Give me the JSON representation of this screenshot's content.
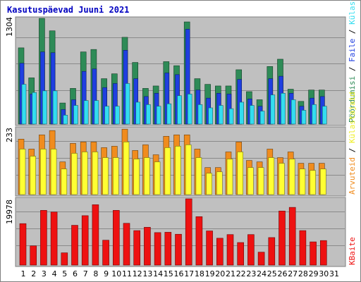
{
  "chart_data": {
    "type": "bar",
    "title": "Kasutuspäevad Juuni 2021",
    "days": [
      "1",
      "2",
      "3",
      "4",
      "5",
      "6",
      "7",
      "8",
      "9",
      "10",
      "11",
      "12",
      "13",
      "14",
      "15",
      "16",
      "17",
      "18",
      "19",
      "20",
      "21",
      "22",
      "23",
      "24",
      "25",
      "26",
      "27",
      "28",
      "29",
      "30",
      "31"
    ],
    "weekend_days": [
      "5",
      "6",
      "12",
      "13",
      "19",
      "20",
      "26",
      "27"
    ],
    "colors": {
      "background": "#c0c0c0",
      "weekday_label": "#000000",
      "weekend_label": "#2e8b57",
      "title": "#0000c0",
      "poordumisi": "#2e8b57",
      "faile": "#1f3fe0",
      "kulastusi": "#33ddf0",
      "arvuteid": "#ffff33",
      "kulastajaid": "#f08c1e",
      "kbaite": "#ee1111"
    },
    "panels": [
      {
        "ymax_label": "1304",
        "ymax": 1304,
        "legend": [
          {
            "key": "poordumisi",
            "label": "Pöördumisi"
          },
          {
            "key": "faile",
            "label": "Faile"
          },
          {
            "key": "kulastusi",
            "label": "Külastusi"
          }
        ],
        "series": [
          {
            "name": "Pöördumisi",
            "key": "poordumisi",
            "values": [
              940,
              570,
              1304,
              1150,
              260,
              440,
              890,
              920,
              560,
              620,
              1070,
              760,
              440,
              470,
              770,
              720,
              1260,
              560,
              490,
              470,
              470,
              670,
              400,
              300,
              710,
              800,
              430,
              280,
              420,
              420,
              0
            ]
          },
          {
            "name": "Faile",
            "key": "faile",
            "values": [
              750,
              370,
              890,
              880,
              180,
              300,
              650,
              680,
              450,
              500,
              910,
              560,
              340,
              380,
              630,
              610,
              1170,
              420,
              320,
              380,
              370,
              550,
              310,
              220,
              560,
              590,
              380,
              220,
              320,
              340,
              0
            ]
          },
          {
            "name": "Külastusi",
            "key": "kulastusi",
            "values": [
              490,
              390,
              410,
              410,
              110,
              230,
              290,
              290,
              220,
              220,
              500,
              270,
              240,
              220,
              250,
              350,
              370,
              240,
              200,
              230,
              190,
              270,
              230,
              160,
              360,
              380,
              300,
              170,
              240,
              220,
              0
            ]
          }
        ]
      },
      {
        "ymax_label": "233",
        "ymax": 233,
        "legend": [
          {
            "key": "arvuteid",
            "label": "Arvuteid"
          },
          {
            "key": "kulastajaid",
            "label": "Külastajaid"
          }
        ],
        "series": [
          {
            "name": "Külastajaid",
            "key": "kulastajaid",
            "values": [
              195,
              160,
              210,
              225,
              115,
              180,
              185,
              185,
              165,
              170,
              230,
              155,
              175,
              140,
              205,
              210,
              210,
              160,
              95,
              95,
              150,
              185,
              120,
              115,
              160,
              130,
              150,
              110,
              110,
              110,
              0
            ]
          },
          {
            "name": "Arvuteid",
            "key": "arvuteid",
            "values": [
              160,
              135,
              160,
              160,
              90,
              145,
              150,
              150,
              130,
              130,
              185,
              125,
              130,
              115,
              165,
              170,
              175,
              130,
              75,
              80,
              125,
              150,
              95,
              95,
              130,
              110,
              125,
              90,
              85,
              90,
              0
            ]
          }
        ]
      },
      {
        "ymax_label": "19978",
        "ymax": 19978,
        "legend": [
          {
            "key": "kbaite",
            "label": "KBaite"
          }
        ],
        "series": [
          {
            "name": "KBaite",
            "key": "kbaite",
            "values": [
              12500,
              5800,
              16500,
              16000,
              3700,
              12000,
              14900,
              18200,
              7500,
              16500,
              12600,
              10400,
              11400,
              9800,
              9900,
              9300,
              19978,
              14600,
              10300,
              8100,
              9200,
              6800,
              9200,
              3900,
              8300,
              16300,
              17400,
              10400,
              7000,
              7400,
              0
            ]
          }
        ]
      }
    ]
  }
}
